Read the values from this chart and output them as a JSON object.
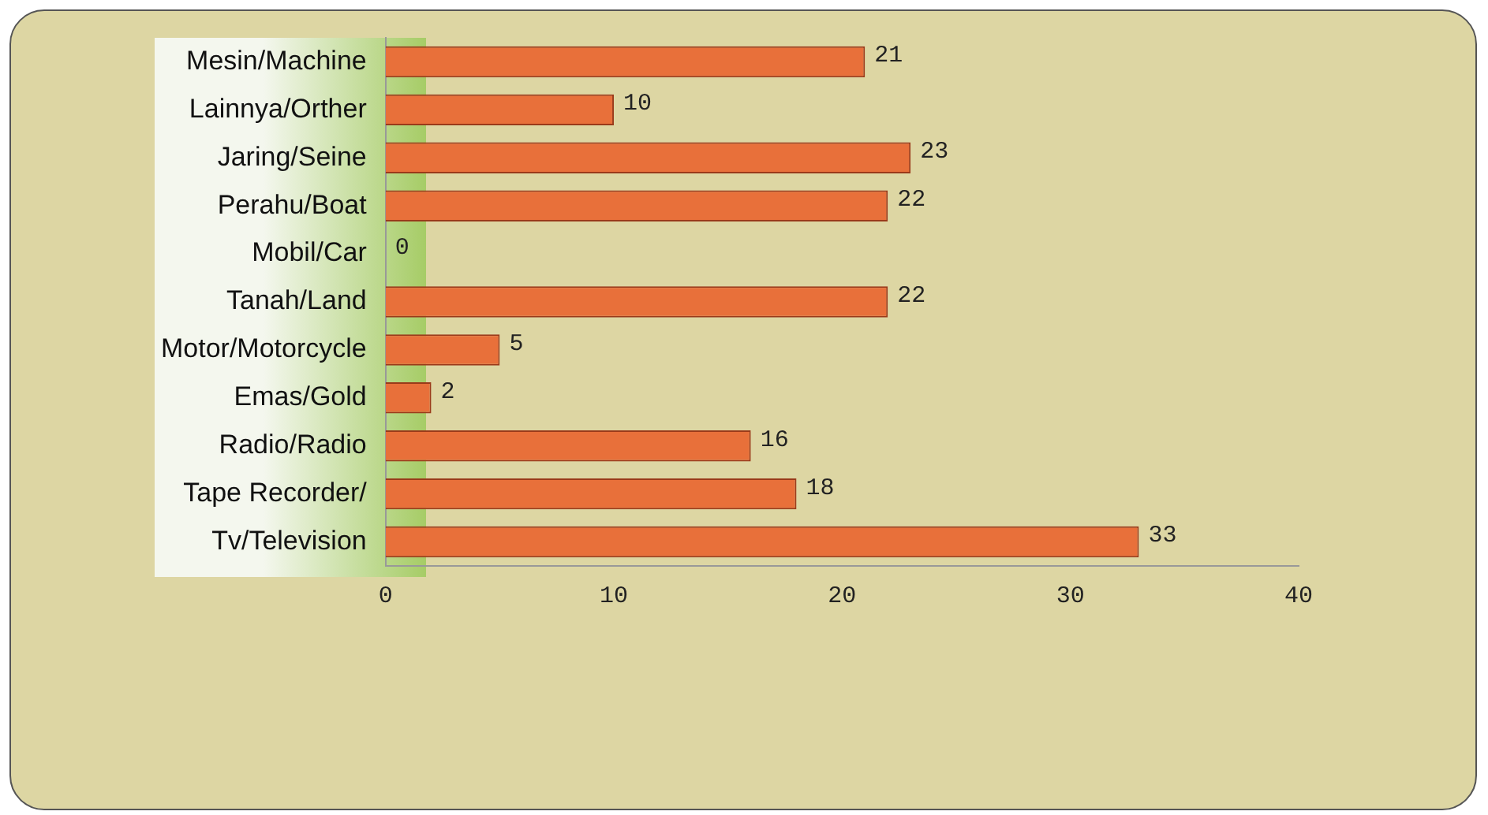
{
  "chart_data": {
    "type": "bar",
    "orientation": "horizontal",
    "categories": [
      "Mesin/Machine",
      "Lainnya/Orther",
      "Jaring/Seine",
      "Perahu/Boat",
      "Mobil/Car",
      "Tanah/Land",
      "Motor/Motorcycle",
      "Emas/Gold",
      "Radio/Radio",
      "Tape Recorder/",
      "Tv/Television"
    ],
    "values": [
      21,
      10,
      23,
      22,
      0,
      22,
      5,
      2,
      16,
      18,
      33
    ],
    "color": "#e8703a",
    "xlim": [
      0,
      40
    ],
    "xticks": [
      0,
      10,
      20,
      30,
      40
    ],
    "data_labels": true,
    "grid": false,
    "legend": false
  }
}
